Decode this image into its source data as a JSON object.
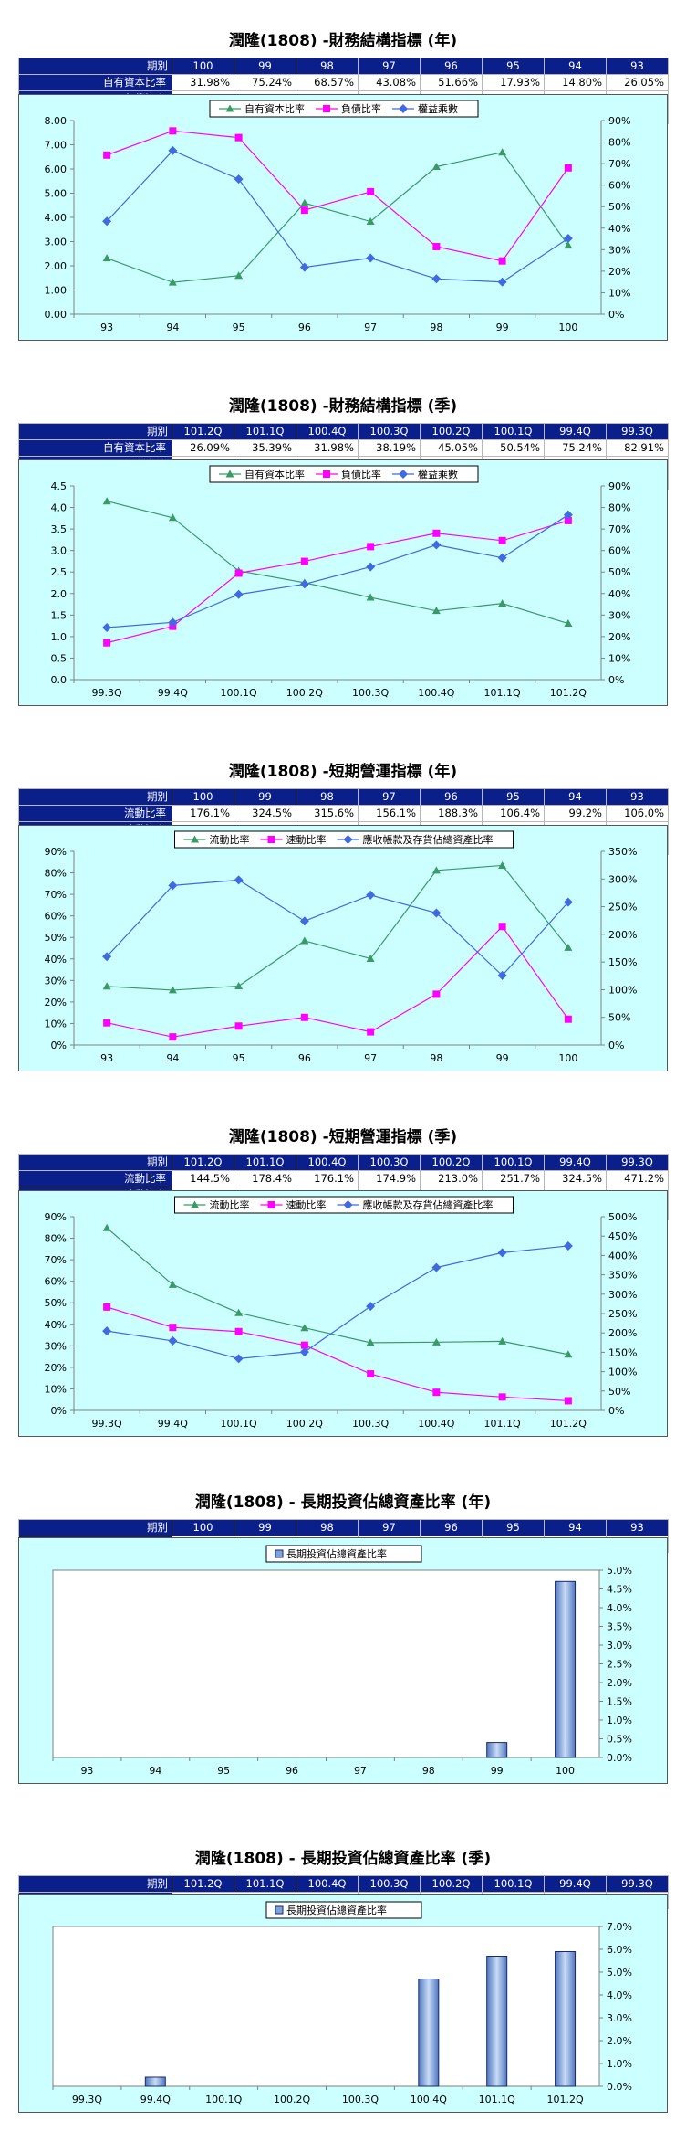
{
  "sections": [
    {
      "title": "潤隆(1808) -財務結構指標 (年)",
      "table": {
        "header": [
          "期別",
          "100",
          "99",
          "98",
          "97",
          "96",
          "95",
          "94",
          "93"
        ],
        "rows": [
          [
            "自有資本比率",
            "31.98%",
            "75.24%",
            "68.57%",
            "43.08%",
            "51.66%",
            "17.93%",
            "14.80%",
            "26.05%"
          ],
          [
            "負債比率",
            "68.02%",
            "24.76%",
            "31.43%",
            "56.92%",
            "48.34%",
            "82.07%",
            "85.20%",
            "73.95%"
          ],
          [
            "權益乘數",
            "3.13",
            "1.33",
            "1.46",
            "2.32",
            "1.94",
            "5.58",
            "6.76",
            "3.84"
          ]
        ]
      }
    },
    {
      "title": "潤隆(1808) -財務結構指標 (季)",
      "table": {
        "header": [
          "期別",
          "101.2Q",
          "101.1Q",
          "100.4Q",
          "100.3Q",
          "100.2Q",
          "100.1Q",
          "99.4Q",
          "99.3Q"
        ],
        "rows": [
          [
            "自有資本比率",
            "26.09%",
            "35.39%",
            "31.98%",
            "38.19%",
            "45.05%",
            "50.54%",
            "75.24%",
            "82.91%"
          ],
          [
            "負債比率",
            "73.91%",
            "64.61%",
            "68.02%",
            "61.81%",
            "54.95%",
            "49.46%",
            "24.76%",
            "17.09%"
          ],
          [
            "權益乘數",
            "3.83",
            "2.83",
            "3.13",
            "2.62",
            "2.22",
            "1.98",
            "1.33",
            "1.21"
          ]
        ]
      }
    },
    {
      "title": "潤隆(1808) -短期營運指標 (年)",
      "table": {
        "header": [
          "期別",
          "100",
          "99",
          "98",
          "97",
          "96",
          "95",
          "94",
          "93"
        ],
        "rows": [
          [
            "流動比率",
            "176.1%",
            "324.5%",
            "315.6%",
            "156.1%",
            "188.3%",
            "106.4%",
            "99.2%",
            "106.0%"
          ],
          [
            "速動比率",
            "46.7%",
            "214.2%",
            "91.8%",
            "23.8%",
            "49.9%",
            "34.2%",
            "14.6%",
            "40.1%"
          ],
          [
            "應收帳款及存貨佔總資產比率",
            "66.39%",
            "32.30%",
            "61.36%",
            "69.67%",
            "57.59%",
            "76.66%",
            "74.13%",
            "41.09%"
          ]
        ]
      }
    },
    {
      "title": "潤隆(1808) -短期營運指標 (季)",
      "table": {
        "header": [
          "期別",
          "101.2Q",
          "101.1Q",
          "100.4Q",
          "100.3Q",
          "100.2Q",
          "100.1Q",
          "99.4Q",
          "99.3Q"
        ],
        "rows": [
          [
            "流動比率",
            "144.5%",
            "178.4%",
            "176.1%",
            "174.9%",
            "213.0%",
            "251.7%",
            "324.5%",
            "471.2%"
          ],
          [
            "速動比率",
            "24.9%",
            "34.6%",
            "46.7%",
            "94.2%",
            "168.3%",
            "203.3%",
            "214.2%",
            "266.8%"
          ],
          [
            "應收帳款及存貨佔總資產比率",
            "76.43%",
            "73.29%",
            "66.39%",
            "48.36%",
            "27.12%",
            "24.03%",
            "32.30%",
            "36.87%"
          ]
        ]
      }
    },
    {
      "title": "潤隆(1808) - 長期投資佔總資產比率 (年)",
      "table": {
        "header": [
          "期別",
          "100",
          "99",
          "98",
          "97",
          "96",
          "95",
          "94",
          "93"
        ],
        "rows": [
          [
            "長期投資佔總資產比率",
            "4.7%",
            "0.4%",
            "0.0%",
            "0.0%",
            "0.0%",
            "0.0%",
            "0.0%",
            "0.0%"
          ]
        ]
      }
    },
    {
      "title": "潤隆(1808) - 長期投資佔總資產比率 (季)",
      "table": {
        "header": [
          "期別",
          "101.2Q",
          "101.1Q",
          "100.4Q",
          "100.3Q",
          "100.2Q",
          "100.1Q",
          "99.4Q",
          "99.3Q"
        ],
        "rows": [
          [
            "長期投資佔總資產比率",
            "5.9%",
            "5.7%",
            "4.7%",
            "0.0%",
            "0.0%",
            "0.0%",
            "0.4%",
            "0.0%"
          ]
        ]
      }
    }
  ],
  "chart_data": [
    {
      "type": "line",
      "categories": [
        "93",
        "94",
        "95",
        "96",
        "97",
        "98",
        "99",
        "100"
      ],
      "series": [
        {
          "name": "自有資本比率",
          "axis": "right",
          "color": "#3a9a66",
          "marker": "triangle",
          "values": [
            26.05,
            14.8,
            17.93,
            51.66,
            43.08,
            68.57,
            75.24,
            31.98
          ]
        },
        {
          "name": "負債比率",
          "axis": "right",
          "color": "#ff00ff",
          "marker": "square",
          "values": [
            73.95,
            85.2,
            82.07,
            48.34,
            56.92,
            31.43,
            24.76,
            68.02
          ]
        },
        {
          "name": "權益乘數",
          "axis": "left",
          "color": "#4169e1",
          "marker": "diamond",
          "values": [
            3.84,
            6.76,
            5.58,
            1.94,
            2.32,
            1.46,
            1.33,
            3.13
          ]
        }
      ],
      "left_axis": {
        "ticks": [
          "0.00",
          "1.00",
          "2.00",
          "3.00",
          "4.00",
          "5.00",
          "6.00",
          "7.00",
          "8.00"
        ],
        "min": 0,
        "max": 8
      },
      "right_axis": {
        "ticks": [
          "0%",
          "10%",
          "20%",
          "30%",
          "40%",
          "50%",
          "60%",
          "70%",
          "80%",
          "90%"
        ],
        "min": 0,
        "max": 90
      },
      "legend": "top-center",
      "grid": false
    },
    {
      "type": "line",
      "categories": [
        "99.3Q",
        "99.4Q",
        "100.1Q",
        "100.2Q",
        "100.3Q",
        "100.4Q",
        "101.1Q",
        "101.2Q"
      ],
      "series": [
        {
          "name": "自有資本比率",
          "axis": "right",
          "color": "#3a9a66",
          "marker": "triangle",
          "values": [
            82.91,
            75.24,
            50.54,
            45.05,
            38.19,
            31.98,
            35.39,
            26.09
          ]
        },
        {
          "name": "負債比率",
          "axis": "right",
          "color": "#ff00ff",
          "marker": "square",
          "values": [
            17.09,
            24.76,
            49.46,
            54.95,
            61.81,
            68.02,
            64.61,
            73.91
          ]
        },
        {
          "name": "權益乘數",
          "axis": "left",
          "color": "#4169e1",
          "marker": "diamond",
          "values": [
            1.21,
            1.33,
            1.98,
            2.22,
            2.62,
            3.13,
            2.83,
            3.83
          ]
        }
      ],
      "left_axis": {
        "ticks": [
          "0.0",
          "0.5",
          "1.0",
          "1.5",
          "2.0",
          "2.5",
          "3.0",
          "3.5",
          "4.0",
          "4.5"
        ],
        "min": 0,
        "max": 4.5
      },
      "right_axis": {
        "ticks": [
          "0%",
          "10%",
          "20%",
          "30%",
          "40%",
          "50%",
          "60%",
          "70%",
          "80%",
          "90%"
        ],
        "min": 0,
        "max": 90
      },
      "legend": "top-center",
      "grid": false
    },
    {
      "type": "line",
      "categories": [
        "93",
        "94",
        "95",
        "96",
        "97",
        "98",
        "99",
        "100"
      ],
      "series": [
        {
          "name": "流動比率",
          "axis": "right",
          "color": "#3a9a66",
          "marker": "triangle",
          "values": [
            106.0,
            99.2,
            106.4,
            188.3,
            156.1,
            315.6,
            324.5,
            176.1
          ]
        },
        {
          "name": "速動比率",
          "axis": "right",
          "color": "#ff00ff",
          "marker": "square",
          "values": [
            40.1,
            14.6,
            34.2,
            49.9,
            23.8,
            91.8,
            214.2,
            46.7
          ]
        },
        {
          "name": "應收帳款及存貨佔總資產比率",
          "axis": "left",
          "color": "#4169e1",
          "marker": "diamond",
          "values": [
            41.09,
            74.13,
            76.66,
            57.59,
            69.67,
            61.36,
            32.3,
            66.39
          ]
        }
      ],
      "left_axis": {
        "ticks": [
          "0%",
          "10%",
          "20%",
          "30%",
          "40%",
          "50%",
          "60%",
          "70%",
          "80%",
          "90%"
        ],
        "min": 0,
        "max": 90
      },
      "right_axis": {
        "ticks": [
          "0%",
          "50%",
          "100%",
          "150%",
          "200%",
          "250%",
          "300%",
          "350%"
        ],
        "min": 0,
        "max": 350
      },
      "legend": "top-center",
      "grid": false
    },
    {
      "type": "line",
      "categories": [
        "99.3Q",
        "99.4Q",
        "100.1Q",
        "100.2Q",
        "100.3Q",
        "100.4Q",
        "101.1Q",
        "101.2Q"
      ],
      "series": [
        {
          "name": "流動比率",
          "axis": "right",
          "color": "#3a9a66",
          "marker": "triangle",
          "values": [
            471.2,
            324.5,
            251.7,
            213.0,
            174.9,
            176.1,
            178.4,
            144.5
          ]
        },
        {
          "name": "速動比率",
          "axis": "right",
          "color": "#ff00ff",
          "marker": "square",
          "values": [
            266.8,
            214.2,
            203.3,
            168.3,
            94.2,
            46.7,
            34.6,
            24.9
          ]
        },
        {
          "name": "應收帳款及存貨佔總資產比率",
          "axis": "left",
          "color": "#4169e1",
          "marker": "diamond",
          "values": [
            36.87,
            32.3,
            24.03,
            27.12,
            48.36,
            66.39,
            73.29,
            76.43
          ]
        }
      ],
      "left_axis": {
        "ticks": [
          "0%",
          "10%",
          "20%",
          "30%",
          "40%",
          "50%",
          "60%",
          "70%",
          "80%",
          "90%"
        ],
        "min": 0,
        "max": 90
      },
      "right_axis": {
        "ticks": [
          "0%",
          "50%",
          "100%",
          "150%",
          "200%",
          "250%",
          "300%",
          "350%",
          "400%",
          "450%",
          "500%"
        ],
        "min": 0,
        "max": 500
      },
      "legend": "top-center",
      "grid": false
    },
    {
      "type": "bar",
      "categories": [
        "93",
        "94",
        "95",
        "96",
        "97",
        "98",
        "99",
        "100"
      ],
      "series": [
        {
          "name": "長期投資佔總資產比率",
          "axis": "right",
          "color": "#7fa3d8",
          "values": [
            0.0,
            0.0,
            0.0,
            0.0,
            0.0,
            0.0,
            0.4,
            4.7
          ]
        }
      ],
      "right_axis": {
        "ticks": [
          "0.0%",
          "0.5%",
          "1.0%",
          "1.5%",
          "2.0%",
          "2.5%",
          "3.0%",
          "3.5%",
          "4.0%",
          "4.5%",
          "5.0%"
        ],
        "min": 0,
        "max": 5
      },
      "legend": "top-center",
      "grid": false
    },
    {
      "type": "bar",
      "categories": [
        "99.3Q",
        "99.4Q",
        "100.1Q",
        "100.2Q",
        "100.3Q",
        "100.4Q",
        "101.1Q",
        "101.2Q"
      ],
      "series": [
        {
          "name": "長期投資佔總資產比率",
          "axis": "right",
          "color": "#7fa3d8",
          "values": [
            0.0,
            0.4,
            0.0,
            0.0,
            0.0,
            4.7,
            5.7,
            5.9
          ]
        }
      ],
      "right_axis": {
        "ticks": [
          "0.0%",
          "1.0%",
          "2.0%",
          "3.0%",
          "4.0%",
          "5.0%",
          "6.0%",
          "7.0%"
        ],
        "min": 0,
        "max": 7
      },
      "legend": "top-center",
      "grid": false
    }
  ]
}
